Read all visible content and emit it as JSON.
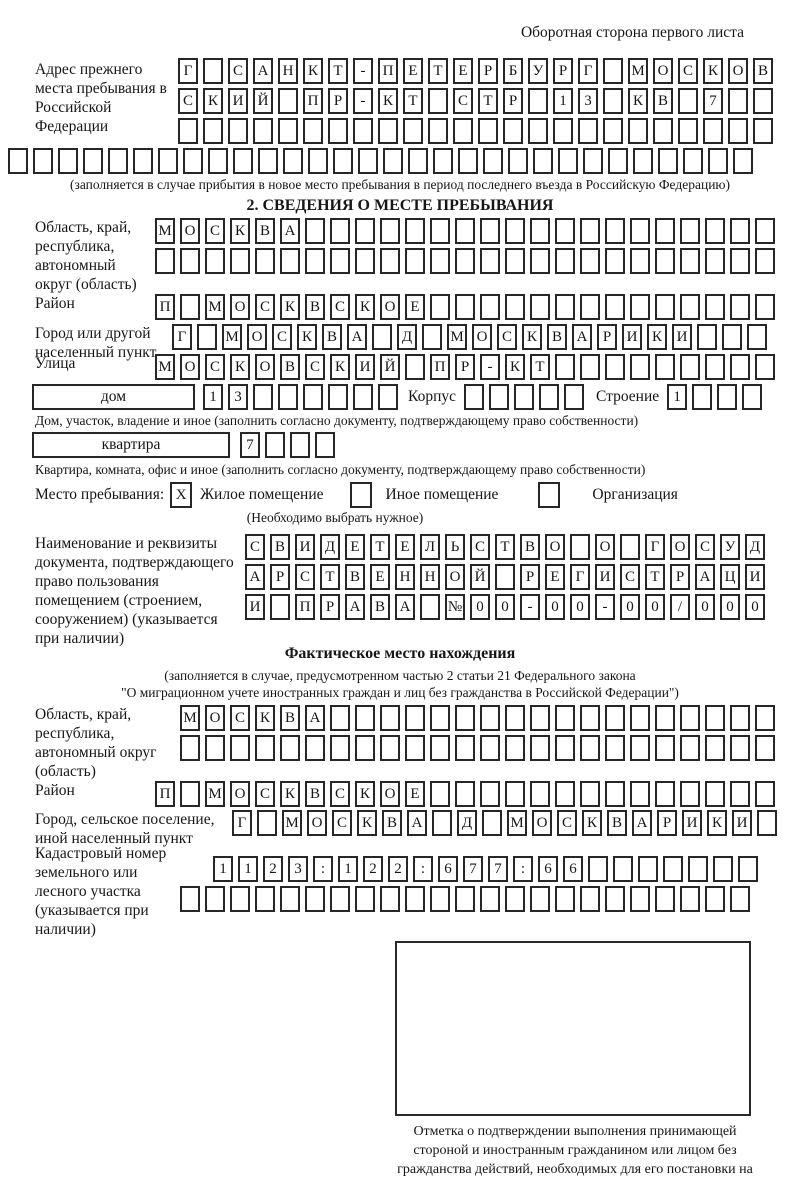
{
  "header": {
    "note": "Оборотная сторона первого листа"
  },
  "prev_address": {
    "label": "Адрес прежнего места пребывания в Российской Федерации",
    "row1": {
      "chars": "Г САНКТ-ПЕТЕРБУРГ МОСКОВ",
      "count": 24
    },
    "row2": {
      "chars": "СКИЙ ПР-КТ СТР 13 КВ 7",
      "count": 24
    },
    "row3": {
      "chars": "",
      "count": 24
    },
    "row4": {
      "chars": "",
      "count": 30
    },
    "note": "(заполняется в случае прибытия в новое место пребывания в период последнего въезда в Российскую Федерацию)"
  },
  "section2": {
    "title": "2. СВЕДЕНИЯ О МЕСТЕ ПРЕБЫВАНИЯ",
    "region": {
      "label": "Область, край, республика, автономный округ (область)",
      "row1": {
        "chars": "МОСКВА",
        "count": 25
      },
      "row2": {
        "chars": "",
        "count": 25
      }
    },
    "district": {
      "label": "Район",
      "row": {
        "chars": "П МОСКВСКОЕ",
        "count": 25
      }
    },
    "city": {
      "label": "Город или другой населенный пункт",
      "row": {
        "chars": "Г МОСКВА Д МОСКВАРИКИ",
        "count": 24
      }
    },
    "street": {
      "label": "Улица",
      "row": {
        "chars": "МОСКОВСКИЙ ПР-КТ",
        "count": 25
      }
    },
    "house": {
      "type_value": "дом",
      "number": {
        "chars": "13",
        "count": 8
      },
      "korpus_label": "Корпус",
      "korpus": {
        "chars": "",
        "count": 5
      },
      "stroenie_label": "Строение",
      "stroenie": {
        "chars": "1",
        "count": 4
      },
      "note": "Дом, участок, владение и иное (заполнить согласно документу, подтверждающему право собственности)"
    },
    "apartment": {
      "type_value": "квартира",
      "number": {
        "chars": "7",
        "count": 4
      },
      "note": "Квартира, комната, офис и иное (заполнить согласно документу, подтверждающему право собственности)"
    },
    "stay": {
      "label": "Место пребывания:",
      "options": [
        {
          "label": "Жилое помещение",
          "mark": "X"
        },
        {
          "label": "Иное помещение",
          "mark": ""
        },
        {
          "label": "Организация",
          "mark": ""
        }
      ],
      "note": "(Необходимо выбрать нужное)"
    },
    "document": {
      "label": "Наименование и реквизиты документа, подтверждающего право пользования помещением (строением, сооружением) (указывается при наличии)",
      "row1": {
        "chars": "СВИДЕТЕЛЬСТВО О ГОСУД",
        "count": 21
      },
      "row2": {
        "chars": "АРСТВЕННОЙ РЕГИСТРАЦИ",
        "count": 21
      },
      "row3": {
        "chars": "И ПРАВА №00-00-00/000",
        "count": 21
      }
    }
  },
  "actual": {
    "title": "Фактическое место нахождения",
    "note1": "(заполняется в случае, предусмотренном частью 2 статьи 21 Федерального закона",
    "note2": "\"О миграционном учете иностранных граждан и лиц без гражданства в Российской Федерации\")",
    "region": {
      "label": "Область, край, республика, автономный округ (область)",
      "row1": {
        "chars": "МОСКВА",
        "count": 24
      },
      "row2": {
        "chars": "",
        "count": 24
      }
    },
    "district": {
      "label": "Район",
      "row": {
        "chars": "П МОСКВСКОЕ",
        "count": 25
      }
    },
    "city": {
      "label": "Город, сельское поселение, иной населенный пункт",
      "row": {
        "chars": "Г МОСКВА Д МОСКВАРИКИ",
        "count": 22
      }
    },
    "cadastral": {
      "label": "Кадастровый номер земельного или лесного участка (указывается при наличии)",
      "row1": {
        "chars": "1123:122:677:66",
        "count": 22
      },
      "row2": {
        "chars": "",
        "count": 23
      }
    }
  },
  "stamp": {
    "caption": "Отметка о подтверждении выполнения принимающей стороной и иностранным гражданином или лицом без гражданства действий, необходимых для его постановки на учет по месту пребывания"
  }
}
